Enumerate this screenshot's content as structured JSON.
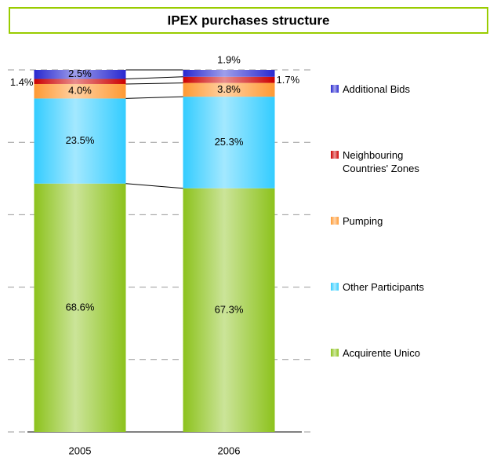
{
  "chart_data": {
    "type": "stacked_bar",
    "title": "IPEX purchases structure",
    "categories": [
      "2005",
      "2006"
    ],
    "series": [
      {
        "name": "Acquirente Unico",
        "color": "#8cc21c",
        "values": [
          68.6,
          67.3
        ],
        "value_labels": [
          "68.6%",
          "67.3%"
        ]
      },
      {
        "name": "Other Participants",
        "color": "#33ccff",
        "values": [
          23.5,
          25.3
        ],
        "value_labels": [
          "23.5%",
          "25.3%"
        ]
      },
      {
        "name": "Pumping",
        "color": "#ff9933",
        "values": [
          4.0,
          3.8
        ],
        "value_labels": [
          "4.0%",
          "3.8%"
        ]
      },
      {
        "name": "Neighbouring Countries' Zones",
        "color": "#cc0000",
        "values": [
          1.4,
          1.7
        ],
        "value_labels": [
          "1.4%",
          "1.7%"
        ]
      },
      {
        "name": "Additional Bids",
        "color": "#2828d0",
        "values": [
          2.5,
          1.9
        ],
        "value_labels": [
          "2.5%",
          "1.9%"
        ]
      }
    ],
    "ylim": [
      0,
      100
    ],
    "yticks": [
      0,
      20,
      40,
      60,
      80,
      100
    ],
    "grid": true,
    "legend": "right"
  }
}
